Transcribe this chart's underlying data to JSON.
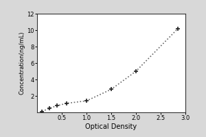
{
  "x_data": [
    0.1,
    0.25,
    0.4,
    0.6,
    1.0,
    1.5,
    2.0,
    2.85
  ],
  "y_data": [
    0.1,
    0.5,
    0.8,
    1.1,
    1.4,
    2.8,
    5.0,
    10.2
  ],
  "xlabel": "Optical Density",
  "ylabel": "Concentration(ng/mL)",
  "xlim": [
    0,
    3
  ],
  "ylim": [
    0,
    12
  ],
  "xticks": [
    0.5,
    1,
    1.5,
    2,
    2.5,
    3
  ],
  "yticks": [
    2,
    4,
    6,
    8,
    10,
    12
  ],
  "line_color": "#666666",
  "marker_color": "#222222",
  "plot_bg": "#ffffff",
  "figure_bg": "#d8d8d8",
  "spine_color": "#333333",
  "xlabel_fontsize": 7,
  "ylabel_fontsize": 6,
  "tick_fontsize": 6
}
